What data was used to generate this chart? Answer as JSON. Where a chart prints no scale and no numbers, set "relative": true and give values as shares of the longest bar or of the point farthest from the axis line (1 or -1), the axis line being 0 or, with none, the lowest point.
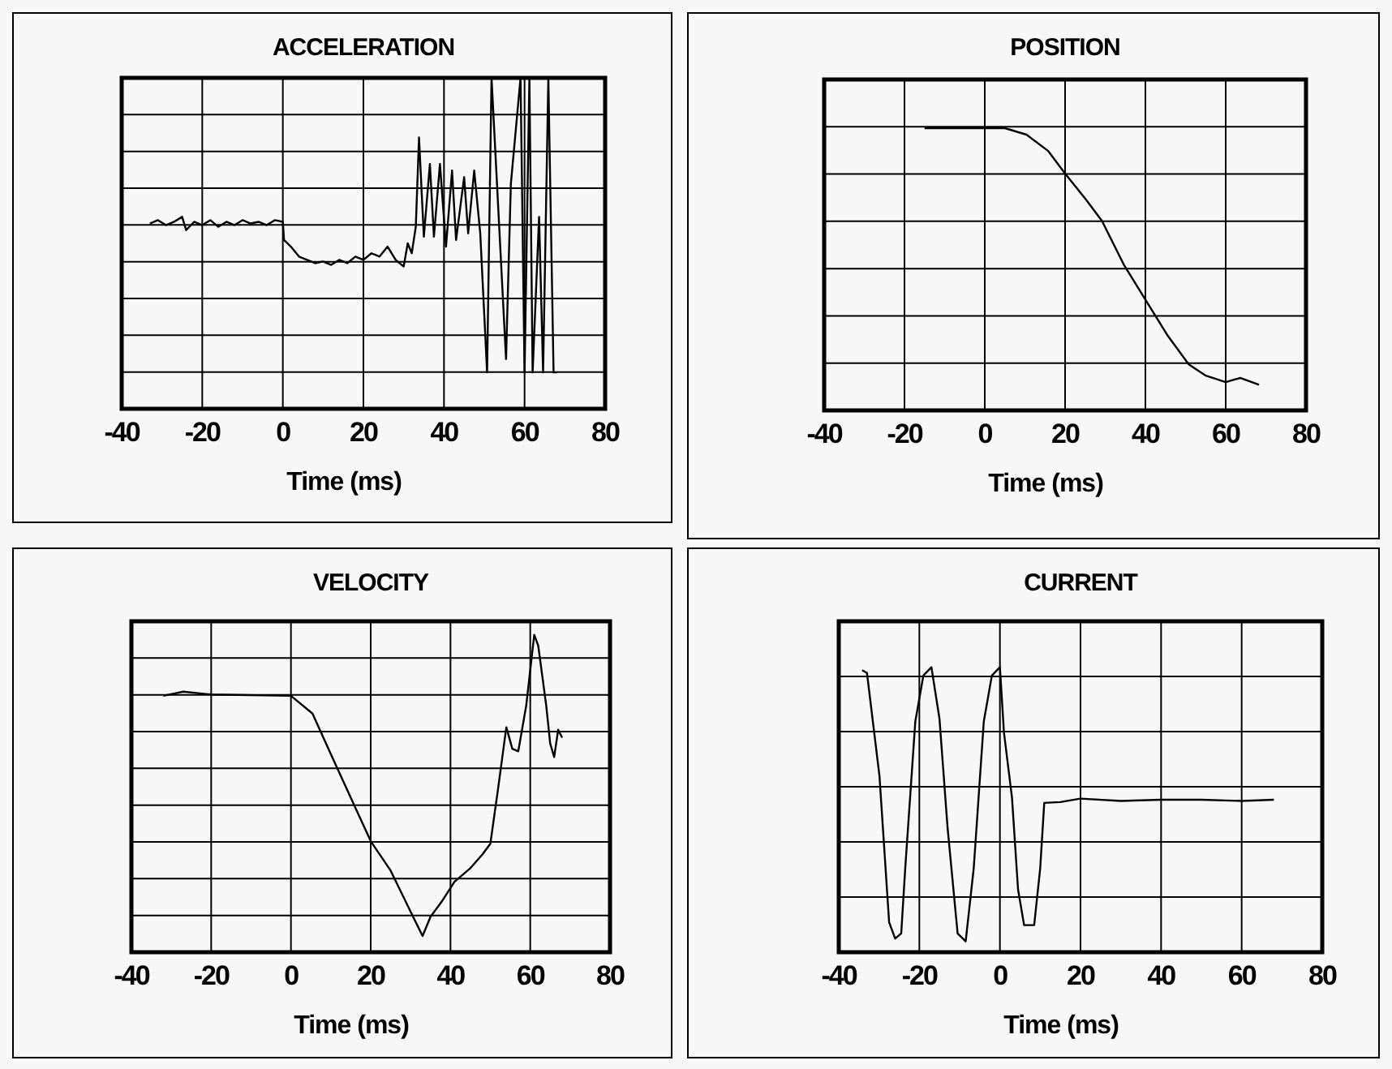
{
  "chart_data": [
    {
      "type": "line",
      "title": "ACCELERATION",
      "xlabel": "Time (ms)",
      "relative": true,
      "grid": true,
      "xlim": [
        -40,
        80
      ],
      "xticks": [
        -40,
        -20,
        0,
        20,
        40,
        60,
        80
      ],
      "series": [
        {
          "color": "#000000",
          "x": [
            -33,
            -31,
            -29,
            -27,
            -25,
            -24,
            -22,
            -20,
            -18,
            -16,
            -14,
            -12,
            -10,
            -8,
            -6,
            -4,
            -2,
            0,
            0.3,
            2,
            4,
            6,
            8,
            10,
            12,
            14,
            16,
            18,
            20,
            22,
            24,
            26,
            28,
            30,
            31,
            32,
            33,
            33.8,
            35,
            36.5,
            37.5,
            39,
            40.5,
            42,
            43,
            45,
            46,
            47.5,
            49,
            50.7,
            51.8,
            55.4,
            56.6,
            59,
            60,
            61.2,
            62,
            63.6,
            64.6,
            65.9,
            67.2,
            68
          ],
          "values": [
            0.56,
            0.57,
            0.555,
            0.565,
            0.58,
            0.54,
            0.565,
            0.555,
            0.57,
            0.55,
            0.565,
            0.555,
            0.57,
            0.56,
            0.565,
            0.555,
            0.57,
            0.565,
            0.51,
            0.49,
            0.46,
            0.45,
            0.44,
            0.445,
            0.435,
            0.45,
            0.44,
            0.46,
            0.45,
            0.47,
            0.46,
            0.49,
            0.45,
            0.43,
            0.5,
            0.47,
            0.55,
            0.82,
            0.52,
            0.74,
            0.52,
            0.74,
            0.49,
            0.72,
            0.51,
            0.7,
            0.53,
            0.72,
            0.53,
            0.11,
            1,
            0.15,
            0.68,
            1,
            0.11,
            1,
            0.11,
            0.58,
            0.11,
            1,
            0.11,
            0.11
          ]
        }
      ]
    },
    {
      "type": "line",
      "title": "POSITION",
      "xlabel": "Time (ms)",
      "relative": true,
      "grid": true,
      "xlim": [
        -40,
        80
      ],
      "xticks": [
        -40,
        -20,
        0,
        20,
        40,
        60,
        80
      ],
      "series": [
        {
          "color": "#000000",
          "x": [
            -15,
            5,
            10.4,
            15.8,
            20,
            25.2,
            29.2,
            34.6,
            40.4,
            45.4,
            50.8,
            54.9,
            60,
            63.6,
            68.3
          ],
          "values": [
            1,
            1,
            0.977,
            0.919,
            0.839,
            0.747,
            0.671,
            0.517,
            0.383,
            0.268,
            0.163,
            0.124,
            0.1,
            0.115,
            0.091
          ]
        }
      ]
    },
    {
      "type": "line",
      "title": "VELOCITY",
      "xlabel": "Time (ms)",
      "relative": true,
      "grid": true,
      "xlim": [
        -40,
        80
      ],
      "xticks": [
        -40,
        -20,
        0,
        20,
        40,
        60,
        80
      ],
      "series": [
        {
          "color": "#000000",
          "x": [
            -32,
            -27,
            -20,
            0,
            5.4,
            10,
            15,
            20,
            25,
            30,
            33,
            35,
            38,
            41,
            45,
            48,
            50,
            52,
            54,
            55.5,
            57,
            59,
            61,
            62,
            64,
            65,
            66,
            67,
            68
          ],
          "values": [
            0.808,
            0.821,
            0.812,
            0.808,
            0.752,
            0.624,
            0.487,
            0.35,
            0.257,
            0.128,
            0.051,
            0.112,
            0.163,
            0.222,
            0.265,
            0.308,
            0.342,
            0.521,
            0.709,
            0.641,
            0.633,
            0.778,
            1,
            0.966,
            0.778,
            0.658,
            0.615,
            0.701,
            0.676
          ]
        }
      ]
    },
    {
      "type": "line",
      "title": "CURRENT",
      "xlabel": "Time (ms)",
      "relative": true,
      "grid": true,
      "xlim": [
        -40,
        80
      ],
      "xticks": [
        -40,
        -20,
        0,
        20,
        40,
        60,
        80
      ],
      "series": [
        {
          "color": "#000000",
          "x": [
            -34.2,
            -33,
            -29.9,
            -27.5,
            -26,
            -24.5,
            -23.5,
            -21,
            -19,
            -17,
            -15,
            -13,
            -10.5,
            -8.5,
            -6.5,
            -4,
            -2,
            0,
            1,
            3,
            4.5,
            6,
            8.5,
            10,
            11,
            15,
            20,
            30,
            40,
            50,
            60,
            68
          ],
          "values": [
            0.99,
            0.98,
            0.619,
            0.105,
            0.048,
            0.066,
            0.295,
            0.81,
            0.971,
            1,
            0.819,
            0.438,
            0.066,
            0.038,
            0.295,
            0.81,
            0.971,
            1,
            0.771,
            0.542,
            0.22,
            0.095,
            0.095,
            0.295,
            0.524,
            0.527,
            0.539,
            0.531,
            0.535,
            0.535,
            0.531,
            0.535
          ]
        }
      ]
    }
  ]
}
